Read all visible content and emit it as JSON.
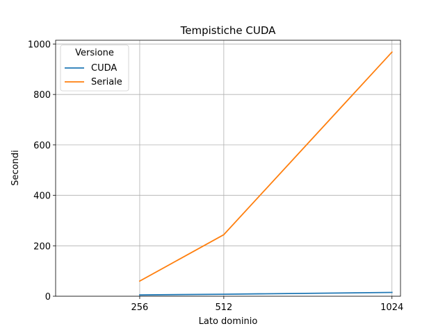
{
  "chart_data": {
    "type": "line",
    "title": "Tempistiche CUDA",
    "xlabel": "Lato dominio",
    "ylabel": "Secondi",
    "x": [
      256,
      512,
      1024
    ],
    "x_ticks": [
      256,
      512,
      1024
    ],
    "xlim": [
      0,
      1050
    ],
    "ylim": [
      0,
      1015
    ],
    "y_ticks": [
      0,
      200,
      400,
      600,
      800,
      1000
    ],
    "grid": true,
    "legend": {
      "title": "Versione",
      "placement": "top-left"
    },
    "series": [
      {
        "name": "CUDA",
        "values": [
          5,
          8,
          15
        ],
        "color": "#1f77b4"
      },
      {
        "name": "Seriale",
        "values": [
          60,
          244,
          968
        ],
        "color": "#ff7f0e"
      }
    ]
  }
}
